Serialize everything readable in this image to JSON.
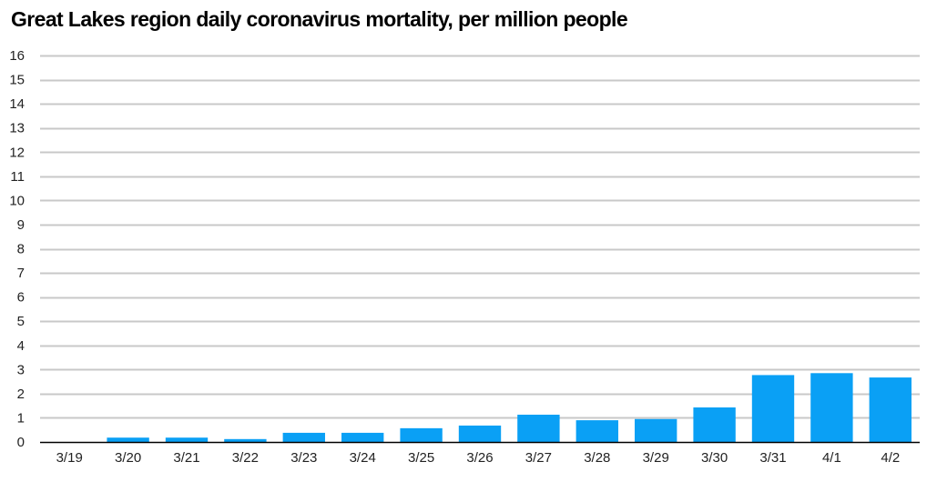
{
  "chart_data": {
    "type": "bar",
    "title": "Great Lakes region daily coronavirus mortality, per million people",
    "xlabel": "",
    "ylabel": "",
    "categories": [
      "3/19",
      "3/20",
      "3/21",
      "3/22",
      "3/23",
      "3/24",
      "3/25",
      "3/26",
      "3/27",
      "3/28",
      "3/29",
      "3/30",
      "3/31",
      "4/1",
      "4/2"
    ],
    "values": [
      0,
      0.18,
      0.18,
      0.12,
      0.38,
      0.38,
      0.57,
      0.68,
      1.13,
      0.9,
      0.95,
      1.43,
      2.77,
      2.85,
      2.67
    ],
    "ylim": [
      0,
      16
    ],
    "yticks": [
      0,
      1,
      2,
      3,
      4,
      5,
      6,
      7,
      8,
      9,
      10,
      11,
      12,
      13,
      14,
      15,
      16
    ],
    "grid": true,
    "legend": "none",
    "colors": {
      "bar": "#0aa0f5",
      "grid": "#c8c8c8",
      "axis": "#000000",
      "text": "#222222"
    }
  }
}
